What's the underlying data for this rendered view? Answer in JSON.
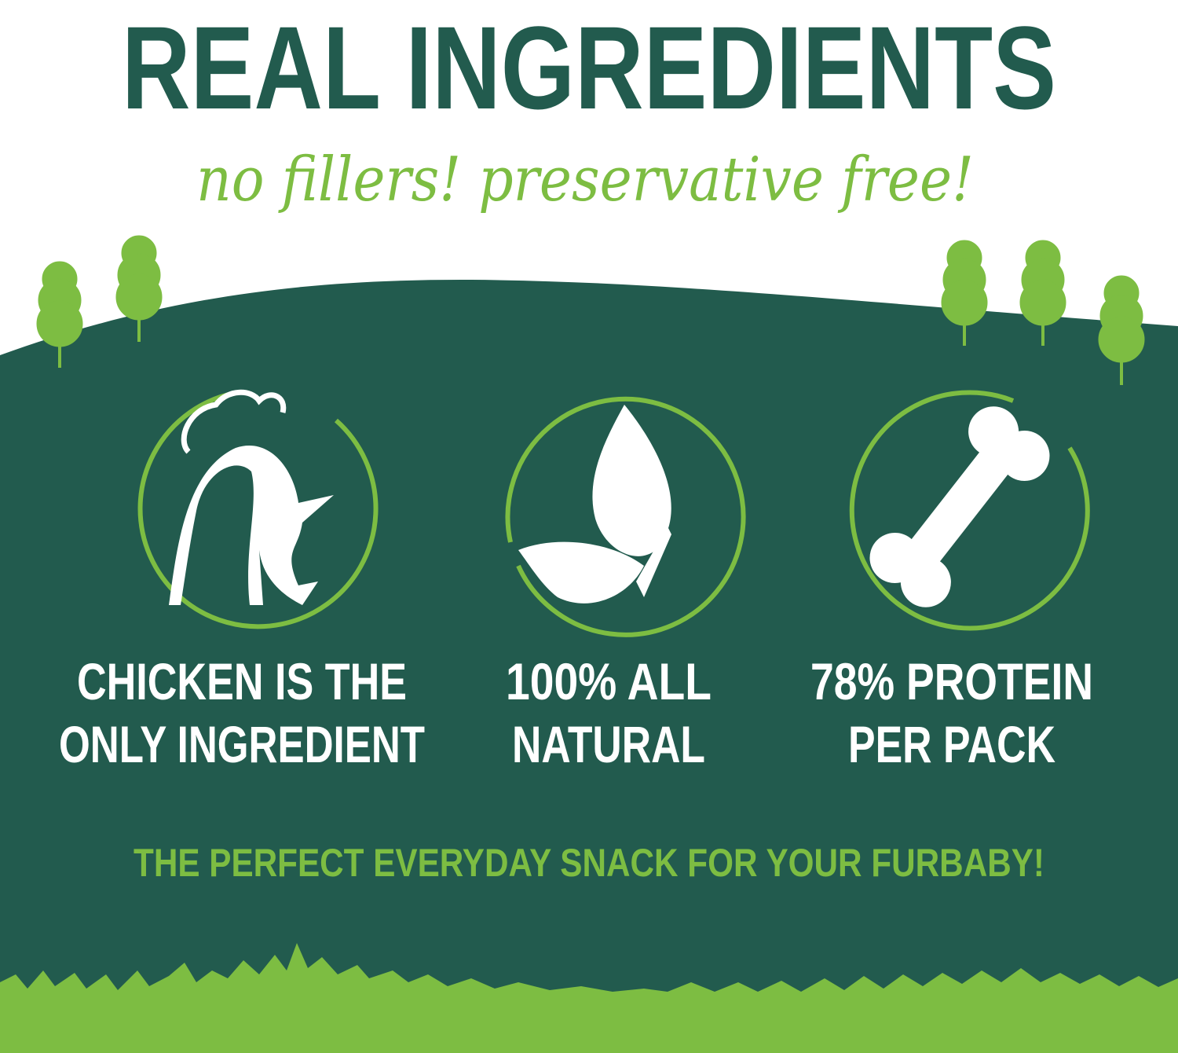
{
  "colors": {
    "dark_green": "#225b4e",
    "light_green": "#7dbd42",
    "white": "#ffffff"
  },
  "header": {
    "title": "REAL INGREDIENTS",
    "subtitle": "no fillers! preservative free!"
  },
  "features": [
    {
      "icon": "chicken-icon",
      "line1": "CHICKEN IS THE",
      "line2": "ONLY INGREDIENT"
    },
    {
      "icon": "leaf-icon",
      "line1": "100% ALL",
      "line2": "NATURAL"
    },
    {
      "icon": "bone-icon",
      "line1": "78% PROTEIN",
      "line2": "PER PACK"
    }
  ],
  "tagline": "THE PERFECT EVERYDAY SNACK FOR YOUR FURBABY!"
}
